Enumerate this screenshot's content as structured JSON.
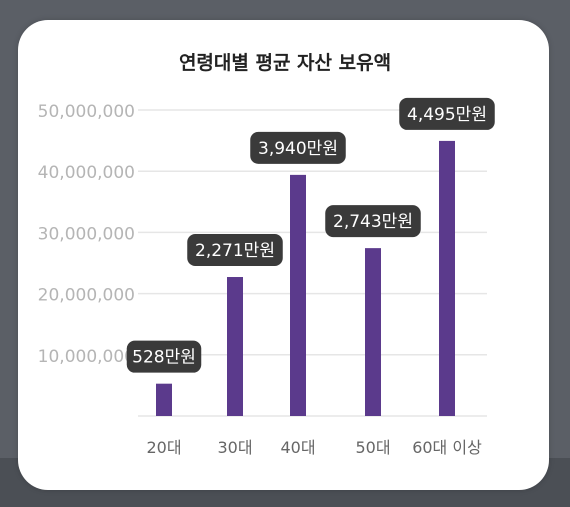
{
  "chart_data": {
    "type": "bar",
    "title": "연령대별 평균 자산 보유액",
    "categories": [
      "20대",
      "30대",
      "40대",
      "50대",
      "60대 이상"
    ],
    "values": [
      5280000,
      22710000,
      39400000,
      27430000,
      44950000
    ],
    "data_labels": [
      "528만원",
      "2,271만원",
      "3,940만원",
      "2,743만원",
      "4,495만원"
    ],
    "yticks": [
      "50,000,000",
      "40,000,000",
      "30,000,000",
      "20,000,000",
      "10,000,000"
    ],
    "ytick_values": [
      50000000,
      40000000,
      30000000,
      20000000,
      10000000
    ],
    "ylim": [
      0,
      50000000
    ],
    "xlabel": "",
    "ylabel": "",
    "grid": true,
    "colors": {
      "bar": "#5b3a8c",
      "label_bg": "#3a3a3a",
      "label_text": "#ffffff",
      "grid": "#e6e6e6",
      "tick_text": "#b5b5b5",
      "category_text": "#666666"
    }
  }
}
